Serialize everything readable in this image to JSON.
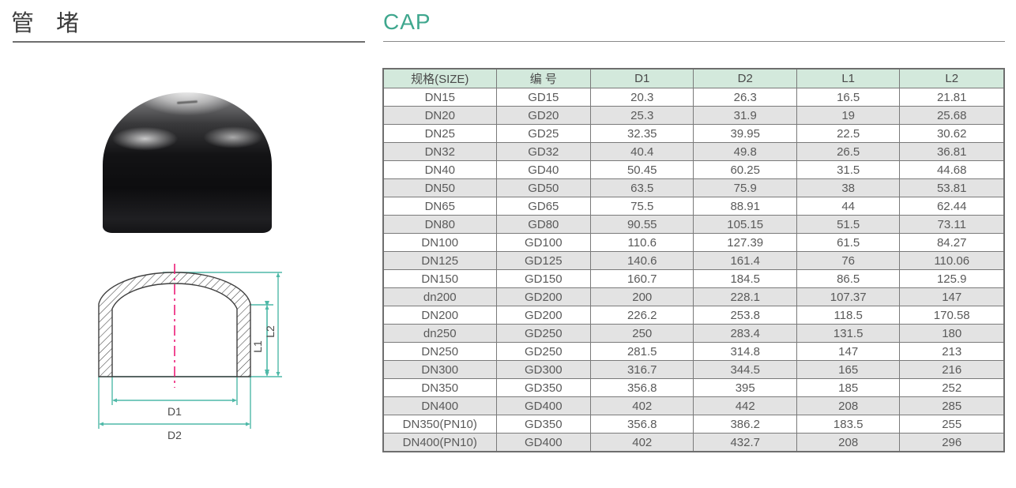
{
  "page": {
    "title_cn": "管 堵",
    "title_en": "CAP"
  },
  "colors": {
    "accent_teal": "#3FA78E",
    "table_header_bg": "#D3E9DC",
    "table_alt_row_bg": "#E3E3E3",
    "table_border": "#7A7A7A",
    "dimension_line_teal": "#4FB9A8",
    "centerline_pink": "#EC1D77",
    "cap_black": "#121214"
  },
  "diagram": {
    "labels": {
      "d1": "D1",
      "d2": "D2",
      "l1": "L1",
      "l2": "L2"
    }
  },
  "table": {
    "headers": [
      "规格(SIZE)",
      "编  号",
      "D1",
      "D2",
      "L1",
      "L2"
    ],
    "rows": [
      [
        "DN15",
        "GD15",
        "20.3",
        "26.3",
        "16.5",
        "21.81"
      ],
      [
        "DN20",
        "GD20",
        "25.3",
        "31.9",
        "19",
        "25.68"
      ],
      [
        "DN25",
        "GD25",
        "32.35",
        "39.95",
        "22.5",
        "30.62"
      ],
      [
        "DN32",
        "GD32",
        "40.4",
        "49.8",
        "26.5",
        "36.81"
      ],
      [
        "DN40",
        "GD40",
        "50.45",
        "60.25",
        "31.5",
        "44.68"
      ],
      [
        "DN50",
        "GD50",
        "63.5",
        "75.9",
        "38",
        "53.81"
      ],
      [
        "DN65",
        "GD65",
        "75.5",
        "88.91",
        "44",
        "62.44"
      ],
      [
        "DN80",
        "GD80",
        "90.55",
        "105.15",
        "51.5",
        "73.11"
      ],
      [
        "DN100",
        "GD100",
        "110.6",
        "127.39",
        "61.5",
        "84.27"
      ],
      [
        "DN125",
        "GD125",
        "140.6",
        "161.4",
        "76",
        "110.06"
      ],
      [
        "DN150",
        "GD150",
        "160.7",
        "184.5",
        "86.5",
        "125.9"
      ],
      [
        "dn200",
        "GD200",
        "200",
        "228.1",
        "107.37",
        "147"
      ],
      [
        "DN200",
        "GD200",
        "226.2",
        "253.8",
        "118.5",
        "170.58"
      ],
      [
        "dn250",
        "GD250",
        "250",
        "283.4",
        "131.5",
        "180"
      ],
      [
        "DN250",
        "GD250",
        "281.5",
        "314.8",
        "147",
        "213"
      ],
      [
        "DN300",
        "GD300",
        "316.7",
        "344.5",
        "165",
        "216"
      ],
      [
        "DN350",
        "GD350",
        "356.8",
        "395",
        "185",
        "252"
      ],
      [
        "DN400",
        "GD400",
        "402",
        "442",
        "208",
        "285"
      ],
      [
        "DN350(PN10)",
        "GD350",
        "356.8",
        "386.2",
        "183.5",
        "255"
      ],
      [
        "DN400(PN10)",
        "GD400",
        "402",
        "432.7",
        "208",
        "296"
      ]
    ]
  }
}
